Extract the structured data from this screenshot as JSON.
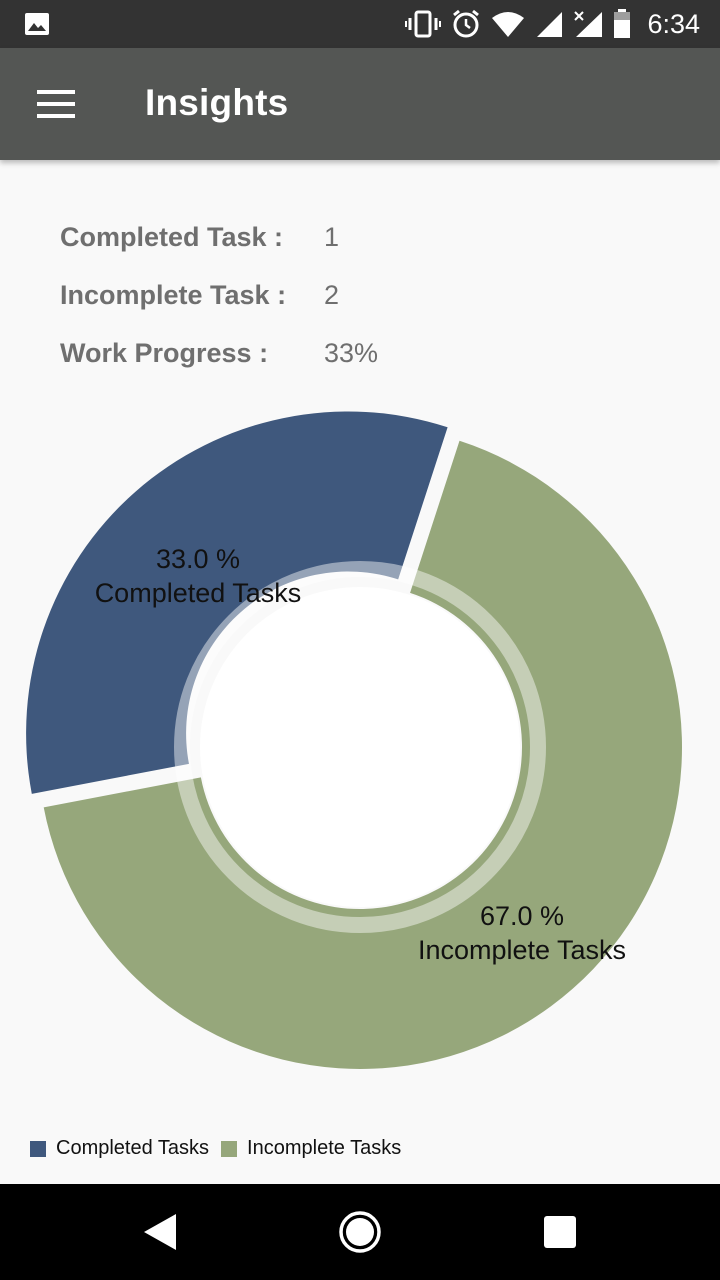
{
  "status_bar": {
    "time": "6:34",
    "icons": [
      "gallery-icon",
      "vibrate-icon",
      "alarm-icon",
      "wifi-icon",
      "signal-icon",
      "no-signal-icon",
      "battery-icon"
    ]
  },
  "app_bar": {
    "title": "Insights",
    "menu_icon": "hamburger-menu-icon"
  },
  "stats": [
    {
      "label": "Completed Task :",
      "value": "1"
    },
    {
      "label": "Incomplete Task :",
      "value": "2"
    },
    {
      "label": "Work Progress :",
      "value": "33%"
    }
  ],
  "chart_data": {
    "type": "pie",
    "style": "donut",
    "categories": [
      "Completed Tasks",
      "Incomplete Tasks"
    ],
    "values": [
      33.0,
      67.0
    ],
    "slice_labels": [
      {
        "percent": "33.0 %",
        "name": "Completed Tasks"
      },
      {
        "percent": "67.0 %",
        "name": "Incomplete Tasks"
      }
    ],
    "colors": [
      "#3f587d",
      "#96a77b"
    ],
    "legend_position": "bottom-left",
    "legend": [
      "Completed Tasks",
      "Incomplete Tasks"
    ]
  },
  "nav_bar": {
    "icons": [
      "back-icon",
      "home-icon",
      "recents-icon"
    ]
  }
}
